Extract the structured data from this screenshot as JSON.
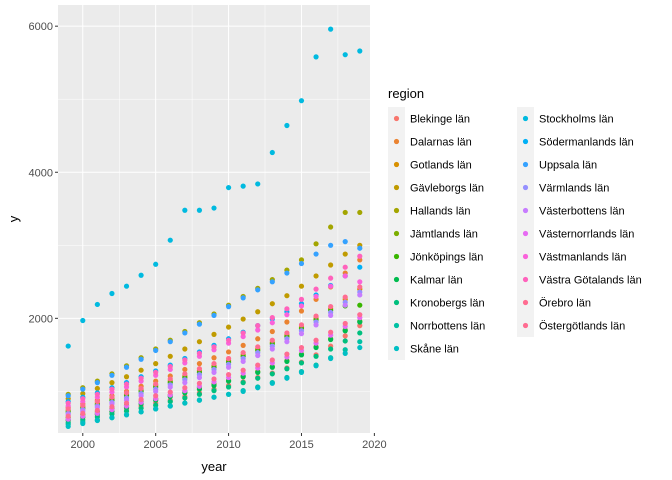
{
  "chart_data": {
    "type": "scatter",
    "title": "",
    "xlabel": "year",
    "ylabel": "y",
    "xlim": [
      1998.3,
      2019.7
    ],
    "ylim": [
      430,
      6290
    ],
    "x_ticks": [
      2000,
      2005,
      2010,
      2015,
      2020
    ],
    "y_ticks": [
      2000,
      4000,
      6000
    ],
    "grid": true,
    "legend": {
      "title": "region",
      "placement": "right",
      "columns": 2
    },
    "x": [
      1999,
      2000,
      2001,
      2002,
      2003,
      2004,
      2005,
      2006,
      2007,
      2008,
      2009,
      2010,
      2011,
      2012,
      2013,
      2014,
      2015,
      2016,
      2017,
      2018,
      2019
    ],
    "series": [
      {
        "name": "Blekinge län",
        "color": "#F8766D",
        "values": [
          600,
          640,
          680,
          720,
          760,
          800,
          840,
          880,
          930,
          980,
          1030,
          1080,
          1130,
          1190,
          1250,
          1320,
          1400,
          1500,
          1620,
          1760,
          1900
        ]
      },
      {
        "name": "Dalarnas län",
        "color": "#EA8331",
        "values": [
          780,
          830,
          880,
          940,
          1000,
          1070,
          1140,
          1210,
          1300,
          1380,
          1460,
          1540,
          1630,
          1720,
          1820,
          1950,
          2100,
          2260,
          2430,
          2620,
          2800
        ]
      },
      {
        "name": "Gotlands län",
        "color": "#D89000",
        "values": [
          740,
          790,
          840,
          900,
          960,
          1020,
          1080,
          1140,
          1210,
          1280,
          1350,
          1420,
          1500,
          1580,
          1670,
          1770,
          1880,
          2000,
          2130,
          2260,
          2400
        ]
      },
      {
        "name": "Gävleborgs län",
        "color": "#C09B00",
        "values": [
          900,
          970,
          1040,
          1120,
          1200,
          1290,
          1380,
          1480,
          1580,
          1680,
          1780,
          1880,
          1990,
          2090,
          2200,
          2310,
          2440,
          2580,
          2730,
          2880,
          3000
        ]
      },
      {
        "name": "Hallands län",
        "color": "#A3A500",
        "values": [
          960,
          1050,
          1140,
          1240,
          1350,
          1460,
          1580,
          1700,
          1820,
          1940,
          2060,
          2180,
          2300,
          2410,
          2530,
          2660,
          2800,
          3020,
          3250,
          3450,
          3450
        ]
      },
      {
        "name": "Jämtlands län",
        "color": "#7CAE00",
        "values": [
          640,
          680,
          720,
          770,
          810,
          860,
          900,
          950,
          1000,
          1050,
          1100,
          1150,
          1210,
          1270,
          1340,
          1420,
          1510,
          1610,
          1720,
          1840,
          1960
        ]
      },
      {
        "name": "Jönköpings län",
        "color": "#39B600",
        "values": [
          720,
          770,
          820,
          880,
          940,
          1000,
          1060,
          1120,
          1190,
          1260,
          1330,
          1400,
          1480,
          1560,
          1650,
          1750,
          1860,
          1980,
          2110,
          2170,
          2180
        ]
      },
      {
        "name": "Kalmar län",
        "color": "#00BB4E",
        "values": [
          610,
          650,
          690,
          730,
          780,
          830,
          880,
          930,
          980,
          1030,
          1080,
          1140,
          1200,
          1260,
          1330,
          1410,
          1500,
          1600,
          1710,
          1830,
          1950
        ]
      },
      {
        "name": "Kronobergs län",
        "color": "#00BF7D",
        "values": [
          570,
          610,
          650,
          690,
          730,
          770,
          810,
          860,
          910,
          960,
          1010,
          1060,
          1120,
          1180,
          1240,
          1310,
          1390,
          1480,
          1580,
          1690,
          1800
        ]
      },
      {
        "name": "Norrbottens län",
        "color": "#00C1A3",
        "values": [
          550,
          580,
          610,
          640,
          680,
          720,
          760,
          800,
          840,
          880,
          920,
          960,
          1010,
          1060,
          1120,
          1190,
          1270,
          1360,
          1460,
          1570,
          1680
        ]
      },
      {
        "name": "Skåne län",
        "color": "#00BFC4",
        "values": [
          520,
          560,
          600,
          640,
          680,
          720,
          760,
          800,
          840,
          880,
          920,
          960,
          1000,
          1050,
          1110,
          1180,
          1260,
          1350,
          1450,
          1520,
          1600
        ]
      },
      {
        "name": "Stockholms län",
        "color": "#00BAE0",
        "values": [
          1620,
          1970,
          2190,
          2340,
          2440,
          2590,
          2740,
          3070,
          3480,
          3480,
          3510,
          3790,
          3810,
          3840,
          4270,
          4640,
          4980,
          5580,
          5960,
          5610,
          5660
        ]
      },
      {
        "name": "Södermanlands län",
        "color": "#00B0F6",
        "values": [
          860,
          920,
          980,
          1050,
          1120,
          1200,
          1280,
          1360,
          1450,
          1540,
          1630,
          1720,
          1810,
          1900,
          1990,
          2090,
          2200,
          2320,
          2450,
          2580,
          2700
        ]
      },
      {
        "name": "Uppsala län",
        "color": "#35A2FF",
        "values": [
          940,
          1030,
          1120,
          1220,
          1330,
          1440,
          1560,
          1680,
          1800,
          1920,
          2040,
          2160,
          2280,
          2390,
          2500,
          2620,
          2750,
          2880,
          3000,
          3050,
          2960
        ]
      },
      {
        "name": "Värmlands län",
        "color": "#9590FF",
        "values": [
          700,
          750,
          800,
          850,
          910,
          970,
          1030,
          1090,
          1160,
          1230,
          1300,
          1370,
          1450,
          1530,
          1620,
          1720,
          1830,
          1950,
          2080,
          2220,
          2360
        ]
      },
      {
        "name": "Västerbottens län",
        "color": "#C77CFF",
        "values": [
          680,
          730,
          780,
          830,
          880,
          940,
          1000,
          1060,
          1120,
          1190,
          1260,
          1330,
          1410,
          1490,
          1580,
          1680,
          1790,
          1910,
          2040,
          2180,
          2320
        ]
      },
      {
        "name": "Västernorrlands län",
        "color": "#E76BF3",
        "values": [
          620,
          660,
          700,
          750,
          800,
          850,
          900,
          950,
          1010,
          1070,
          1130,
          1190,
          1250,
          1320,
          1390,
          1470,
          1560,
          1660,
          1770,
          1890,
          2010
        ]
      },
      {
        "name": "Västmanlands län",
        "color": "#FA62DB",
        "values": [
          800,
          860,
          920,
          990,
          1060,
          1140,
          1220,
          1300,
          1390,
          1480,
          1570,
          1660,
          1750,
          1840,
          1940,
          2050,
          2170,
          2300,
          2440,
          2580,
          2500
        ]
      },
      {
        "name": "Västra Götalands län",
        "color": "#FF62BC",
        "values": [
          840,
          900,
          960,
          1030,
          1100,
          1180,
          1260,
          1340,
          1430,
          1520,
          1610,
          1700,
          1800,
          1900,
          2010,
          2130,
          2260,
          2400,
          2550,
          2700,
          2850
        ]
      },
      {
        "name": "Örebro län",
        "color": "#FF6C91",
        "values": [
          660,
          700,
          740,
          790,
          840,
          890,
          940,
          990,
          1050,
          1110,
          1170,
          1230,
          1290,
          1360,
          1430,
          1510,
          1600,
          1700,
          1810,
          1930,
          2050
        ]
      },
      {
        "name": "Östergötlands län",
        "color": "#FF6C91",
        "values": [
          760,
          810,
          860,
          920,
          980,
          1040,
          1100,
          1170,
          1240,
          1310,
          1380,
          1450,
          1530,
          1610,
          1700,
          1800,
          1910,
          2030,
          2160,
          2290,
          2430
        ]
      }
    ]
  }
}
